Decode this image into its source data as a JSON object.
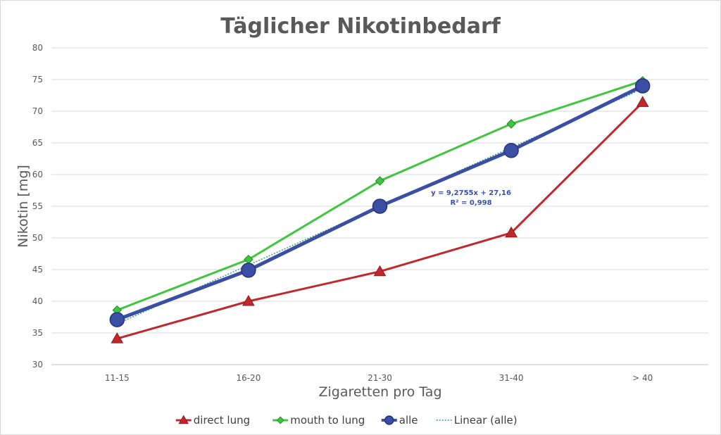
{
  "chart_data": {
    "type": "line",
    "title": "Täglicher Nikotinbedarf",
    "xlabel": "Zigaretten pro Tag",
    "ylabel": "Nikotin [mg]",
    "categories": [
      "11-15",
      "16-20",
      "21-30",
      "31-40",
      "> 40"
    ],
    "ylim": [
      30,
      80
    ],
    "yticks": [
      30,
      35,
      40,
      45,
      50,
      55,
      60,
      65,
      70,
      75,
      80
    ],
    "grid": true,
    "legend_position": "bottom",
    "series": [
      {
        "name": "direct lung",
        "values": [
          34.1,
          40.0,
          44.7,
          50.8,
          71.4
        ],
        "color": "#c0282d",
        "marker": "triangle"
      },
      {
        "name": "mouth to lung",
        "values": [
          38.6,
          46.6,
          59.0,
          68.0,
          74.8
        ],
        "color": "#3ec63e",
        "marker": "diamond"
      },
      {
        "name": "alle",
        "values": [
          37.1,
          44.9,
          55.0,
          63.8,
          74.0
        ],
        "color": "#3a4fa3",
        "marker": "circle"
      },
      {
        "name": "Linear (alle)",
        "trendline_of": "alle",
        "slope": 9.2755,
        "intercept": 27.16,
        "color": "#3a9a8a",
        "style": "dotted"
      }
    ],
    "annotations": {
      "equation": "y = 9,2755x + 27,16",
      "r_squared": "R² = 0,998"
    }
  }
}
